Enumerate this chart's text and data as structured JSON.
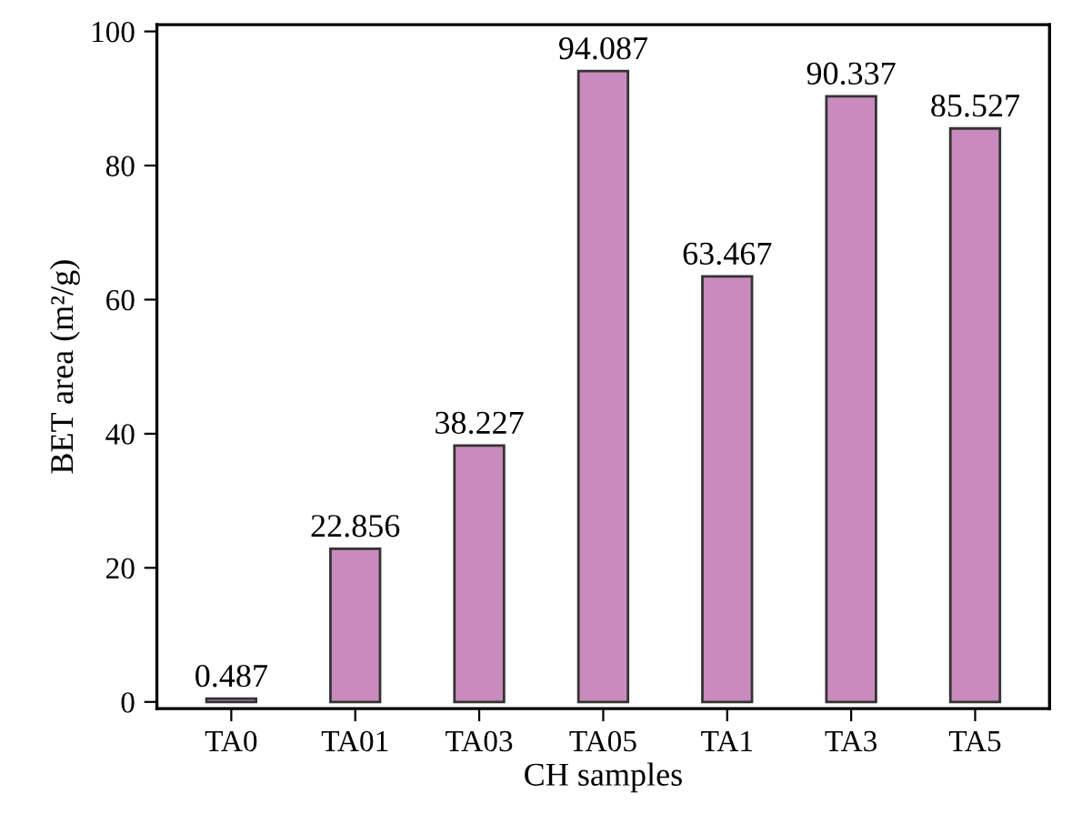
{
  "chart_data": {
    "type": "bar",
    "xlabel": "CH samples",
    "ylabel": "BET area (m²/g)",
    "categories": [
      "TA0",
      "TA01",
      "TA03",
      "TA05",
      "TA1",
      "TA3",
      "TA5"
    ],
    "values": [
      0.487,
      22.856,
      38.227,
      94.087,
      63.467,
      90.337,
      85.527
    ],
    "color": "#c98bbd",
    "ylim": [
      -1,
      101
    ],
    "yticks": [
      0,
      20,
      40,
      60,
      80,
      100
    ],
    "grid": false,
    "data_labels": true
  }
}
